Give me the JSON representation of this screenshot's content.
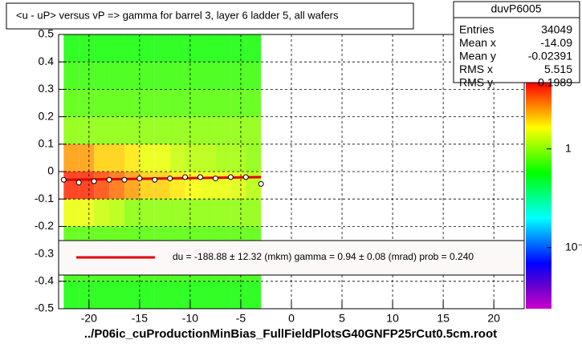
{
  "chart_data": {
    "type": "heatmap",
    "title": "<u - uP>       versus   vP =>  gamma for barrel 3, layer 6 ladder 5, all wafers",
    "footer": "../P06ic_cuProductionMinBias_FullFieldPlotsG40GNFP25rCut0.5cm.root",
    "xlim": [
      -23,
      23
    ],
    "ylim": [
      -0.5,
      0.5
    ],
    "xticks": [
      -20,
      -15,
      -10,
      -5,
      0,
      5,
      10,
      15,
      20
    ],
    "yticks": [
      -0.5,
      -0.4,
      -0.3,
      -0.2,
      -0.1,
      0,
      0.1,
      0.2,
      0.3,
      0.4,
      0.5
    ],
    "grid": true,
    "zlim": [
      0.024,
      4.7
    ],
    "zticks": [
      1,
      {
        "value": 0.1,
        "label": "10⁻¹"
      }
    ],
    "log_z": true,
    "xbins": [
      -22.5,
      -21,
      -19.5,
      -18,
      -16.5,
      -15,
      -13.5,
      -12,
      -10.5,
      -9,
      -7.5,
      -6,
      -4.5,
      -3
    ],
    "ybins": [
      -0.5,
      -0.4,
      -0.3,
      -0.2,
      -0.1,
      0,
      0.1,
      0.2,
      0.3,
      0.4,
      0.5
    ],
    "z": [
      [
        0.6,
        0.6,
        0.6,
        0.6,
        0.6,
        0.6,
        0.6,
        0.6,
        0.6,
        0.6,
        0.6,
        0.6,
        0.6
      ],
      [
        0.7,
        0.7,
        0.7,
        0.7,
        0.7,
        0.7,
        0.7,
        0.7,
        0.7,
        0.7,
        0.7,
        0.7,
        0.7
      ],
      [
        0.8,
        0.8,
        0.8,
        0.8,
        0.8,
        0.8,
        0.8,
        0.8,
        0.8,
        0.8,
        0.8,
        0.8,
        0.8
      ],
      [
        1.5,
        1.5,
        1.3,
        1.2,
        1.0,
        1.0,
        1.0,
        1.0,
        1.0,
        1.0,
        1.0,
        1.0,
        1.0
      ],
      [
        4,
        4,
        3.5,
        3,
        2.5,
        2,
        2,
        1.8,
        1.6,
        1.5,
        1.5,
        1.4,
        1.2
      ],
      [
        2.5,
        2.5,
        2,
        2,
        1.8,
        1.5,
        1.5,
        1.3,
        1.2,
        1.2,
        1.1,
        1.1,
        1
      ],
      [
        1.0,
        1.0,
        1.0,
        1.0,
        1.0,
        1.0,
        1.0,
        1.0,
        1.0,
        1.0,
        1.0,
        1.0,
        1.0
      ],
      [
        0.8,
        0.8,
        0.8,
        0.8,
        0.8,
        0.8,
        0.8,
        0.8,
        0.8,
        0.8,
        0.8,
        0.8,
        0.8
      ],
      [
        0.7,
        0.7,
        0.7,
        0.7,
        0.7,
        0.7,
        0.7,
        0.7,
        0.7,
        0.7,
        0.7,
        0.7,
        0.7
      ],
      [
        0.6,
        0.6,
        0.6,
        0.6,
        0.6,
        0.6,
        0.6,
        0.6,
        0.6,
        0.6,
        0.6,
        0.6,
        0.6
      ]
    ],
    "profile": {
      "x": [
        -22.5,
        -21,
        -19.5,
        -18,
        -16.5,
        -15,
        -13.5,
        -12,
        -10.5,
        -9,
        -7.5,
        -6,
        -4.5,
        -3
      ],
      "y": [
        -0.03,
        -0.04,
        -0.035,
        -0.03,
        -0.03,
        -0.025,
        -0.03,
        -0.025,
        -0.02,
        -0.02,
        -0.025,
        -0.02,
        -0.02,
        -0.045
      ]
    },
    "fit": {
      "x": [
        -22.5,
        -3
      ],
      "y": [
        -0.03,
        -0.02
      ],
      "color": "#e00000"
    },
    "legend_text": "du = -188.88 ±  12.32 (mkm) gamma =    0.94 ±  0.08 (mrad) prob = 0.240",
    "stats": {
      "name": "duvP6005",
      "rows": [
        {
          "label": "Entries",
          "value": 34049
        },
        {
          "label": "Mean x",
          "value": -14.09
        },
        {
          "label": "Mean y",
          "value": -0.02391
        },
        {
          "label": "RMS x",
          "value": 5.515
        },
        {
          "label": "RMS y",
          "value": 0.1989
        }
      ]
    }
  }
}
